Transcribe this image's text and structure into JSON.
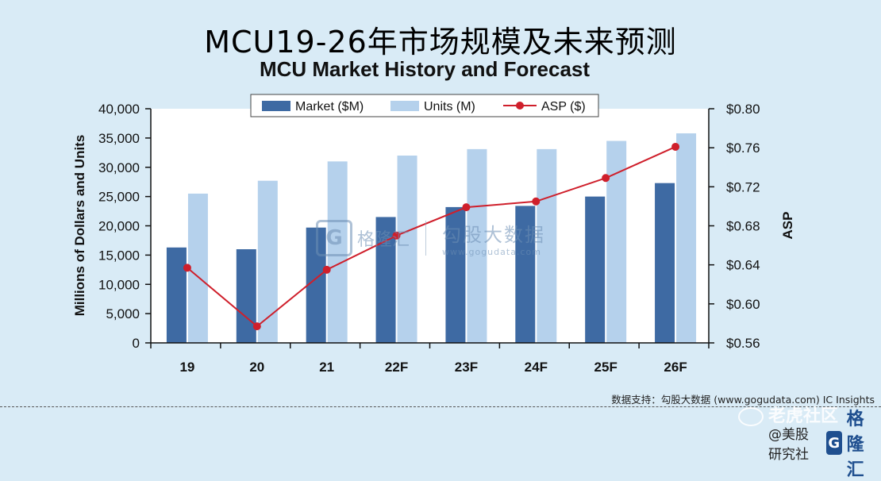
{
  "title": "MCU19-26年市场规模及未来预测",
  "subtitle": "MCU Market History and Forecast",
  "source_note": "数据支持：勾股大数据 (www.gogudata.com) IC Insights",
  "watermarks": {
    "center_logo_letter": "G",
    "center_name": "格隆汇",
    "center_right_cn": "勾股大数据",
    "center_right_url": "www.gogudata.com",
    "community": "老虎社区",
    "bottom_prefix": "@美股研究社",
    "bottom_brand": "格隆汇",
    "bottom_logo_letter": "G"
  },
  "colors": {
    "background": "#d9ebf6",
    "plot_background": "#ffffff",
    "market": "#3e6aa3",
    "units": "#b5d1ec",
    "asp": "#cf1f2b"
  },
  "chart_data": {
    "type": "bar",
    "title": "MCU Market History and Forecast",
    "categories": [
      "19",
      "20",
      "21",
      "22F",
      "23F",
      "24F",
      "25F",
      "26F"
    ],
    "series": [
      {
        "name": "Market ($M)",
        "type": "bar",
        "axis": "left",
        "values": [
          16300,
          16000,
          19700,
          21500,
          23200,
          23400,
          25000,
          27300
        ]
      },
      {
        "name": "Units (M)",
        "type": "bar",
        "axis": "left",
        "values": [
          25500,
          27700,
          31000,
          32000,
          33100,
          33100,
          34500,
          35800
        ]
      },
      {
        "name": "ASP ($)",
        "type": "line",
        "axis": "right",
        "values": [
          0.637,
          0.577,
          0.635,
          0.67,
          0.699,
          0.705,
          0.729,
          0.761
        ]
      }
    ],
    "ylabel": "Millions of Dollars and Units",
    "y2label": "ASP",
    "ylim": [
      0,
      40000
    ],
    "y2lim": [
      0.56,
      0.8
    ],
    "yticks": [
      "0",
      "5,000",
      "10,000",
      "15,000",
      "20,000",
      "25,000",
      "30,000",
      "35,000",
      "40,000"
    ],
    "y2ticks": [
      "$0.56",
      "$0.60",
      "$0.64",
      "$0.68",
      "$0.72",
      "$0.76",
      "$0.80"
    ],
    "legend_position": "top-center",
    "grid": false
  }
}
